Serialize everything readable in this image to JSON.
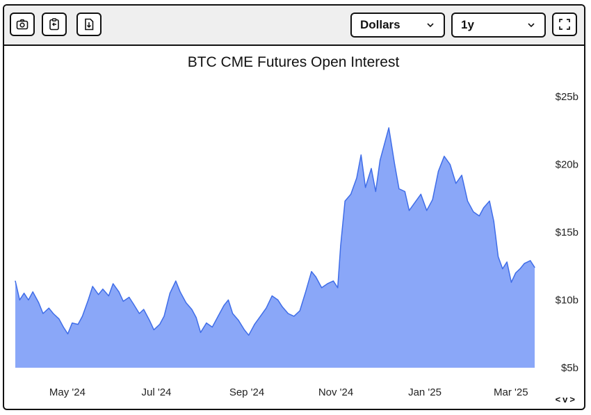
{
  "toolbar": {
    "screenshot_icon": "camera-icon",
    "copy_icon": "clipboard-icon",
    "download_icon": "download-icon",
    "currency_value": "Dollars",
    "range_value": "1y",
    "fullscreen_icon": "expand-icon"
  },
  "nav": {
    "prev": "<",
    "next": "v",
    "more": ">"
  },
  "colors": {
    "area_fill": "#8aa7f8",
    "area_line": "#3f6de8"
  },
  "chart_data": {
    "type": "area",
    "title": "BTC CME Futures Open Interest",
    "xlabel": "",
    "ylabel": "",
    "ylim": [
      5,
      25
    ],
    "y_ticks": [
      "$5b",
      "$10b",
      "$15b",
      "$20b",
      "$25b"
    ],
    "y_tick_values": [
      5,
      10,
      15,
      20,
      25
    ],
    "x_ticks": [
      {
        "date": "2024-05-01",
        "label": "May '24"
      },
      {
        "date": "2024-07-01",
        "label": "Jul '24"
      },
      {
        "date": "2024-09-01",
        "label": "Sep '24"
      },
      {
        "date": "2024-11-01",
        "label": "Nov '24"
      },
      {
        "date": "2025-01-01",
        "label": "Jan '25"
      },
      {
        "date": "2025-03-01",
        "label": "Mar '25"
      }
    ],
    "series": [
      {
        "values": [
          [
            "2024-04-01",
            11.4
          ],
          [
            "2024-04-04",
            10.0
          ],
          [
            "2024-04-07",
            10.5
          ],
          [
            "2024-04-10",
            10.0
          ],
          [
            "2024-04-13",
            10.6
          ],
          [
            "2024-04-17",
            9.8
          ],
          [
            "2024-04-20",
            9.0
          ],
          [
            "2024-04-24",
            9.4
          ],
          [
            "2024-04-27",
            9.0
          ],
          [
            "2024-05-01",
            8.6
          ],
          [
            "2024-05-04",
            8.0
          ],
          [
            "2024-05-07",
            7.5
          ],
          [
            "2024-05-10",
            8.3
          ],
          [
            "2024-05-14",
            8.2
          ],
          [
            "2024-05-17",
            8.8
          ],
          [
            "2024-05-21",
            10.0
          ],
          [
            "2024-05-24",
            11.0
          ],
          [
            "2024-05-28",
            10.4
          ],
          [
            "2024-05-31",
            10.8
          ],
          [
            "2024-06-04",
            10.3
          ],
          [
            "2024-06-07",
            11.2
          ],
          [
            "2024-06-11",
            10.6
          ],
          [
            "2024-06-14",
            9.9
          ],
          [
            "2024-06-18",
            10.2
          ],
          [
            "2024-06-21",
            9.7
          ],
          [
            "2024-06-25",
            9.0
          ],
          [
            "2024-06-28",
            9.3
          ],
          [
            "2024-07-02",
            8.5
          ],
          [
            "2024-07-05",
            7.8
          ],
          [
            "2024-07-09",
            8.2
          ],
          [
            "2024-07-12",
            8.8
          ],
          [
            "2024-07-16",
            10.5
          ],
          [
            "2024-07-20",
            11.4
          ],
          [
            "2024-07-23",
            10.6
          ],
          [
            "2024-07-27",
            9.8
          ],
          [
            "2024-07-31",
            9.3
          ],
          [
            "2024-08-03",
            8.7
          ],
          [
            "2024-08-06",
            7.6
          ],
          [
            "2024-08-10",
            8.3
          ],
          [
            "2024-08-14",
            8.0
          ],
          [
            "2024-08-18",
            8.8
          ],
          [
            "2024-08-22",
            9.6
          ],
          [
            "2024-08-25",
            10.0
          ],
          [
            "2024-08-28",
            9.0
          ],
          [
            "2024-09-01",
            8.5
          ],
          [
            "2024-09-05",
            7.8
          ],
          [
            "2024-09-08",
            7.4
          ],
          [
            "2024-09-12",
            8.2
          ],
          [
            "2024-09-16",
            8.8
          ],
          [
            "2024-09-20",
            9.4
          ],
          [
            "2024-09-24",
            10.3
          ],
          [
            "2024-09-28",
            10.0
          ],
          [
            "2024-10-01",
            9.5
          ],
          [
            "2024-10-05",
            9.0
          ],
          [
            "2024-10-09",
            8.8
          ],
          [
            "2024-10-13",
            9.2
          ],
          [
            "2024-10-17",
            10.6
          ],
          [
            "2024-10-21",
            12.1
          ],
          [
            "2024-10-24",
            11.7
          ],
          [
            "2024-10-28",
            10.9
          ],
          [
            "2024-11-01",
            11.2
          ],
          [
            "2024-11-05",
            11.4
          ],
          [
            "2024-11-08",
            10.9
          ],
          [
            "2024-11-10",
            14.0
          ],
          [
            "2024-11-13",
            17.3
          ],
          [
            "2024-11-17",
            17.8
          ],
          [
            "2024-11-21",
            19.0
          ],
          [
            "2024-11-24",
            20.7
          ],
          [
            "2024-11-27",
            18.3
          ],
          [
            "2024-12-01",
            19.7
          ],
          [
            "2024-12-04",
            18.0
          ],
          [
            "2024-12-07",
            20.3
          ],
          [
            "2024-12-10",
            21.5
          ],
          [
            "2024-12-13",
            22.7
          ],
          [
            "2024-12-17",
            20.0
          ],
          [
            "2024-12-20",
            18.2
          ],
          [
            "2024-12-24",
            18.0
          ],
          [
            "2024-12-27",
            16.6
          ],
          [
            "2024-12-31",
            17.2
          ],
          [
            "2025-01-04",
            17.8
          ],
          [
            "2025-01-08",
            16.6
          ],
          [
            "2025-01-12",
            17.4
          ],
          [
            "2025-01-16",
            19.5
          ],
          [
            "2025-01-20",
            20.6
          ],
          [
            "2025-01-24",
            20.0
          ],
          [
            "2025-01-28",
            18.6
          ],
          [
            "2025-02-01",
            19.2
          ],
          [
            "2025-02-05",
            17.3
          ],
          [
            "2025-02-09",
            16.5
          ],
          [
            "2025-02-13",
            16.2
          ],
          [
            "2025-02-16",
            16.8
          ],
          [
            "2025-02-20",
            17.3
          ],
          [
            "2025-02-23",
            15.8
          ],
          [
            "2025-02-26",
            13.2
          ],
          [
            "2025-03-01",
            12.3
          ],
          [
            "2025-03-04",
            12.8
          ],
          [
            "2025-03-07",
            11.3
          ],
          [
            "2025-03-10",
            12.0
          ],
          [
            "2025-03-13",
            12.3
          ],
          [
            "2025-03-16",
            12.7
          ],
          [
            "2025-03-20",
            12.9
          ],
          [
            "2025-03-23",
            12.4
          ]
        ]
      }
    ]
  }
}
